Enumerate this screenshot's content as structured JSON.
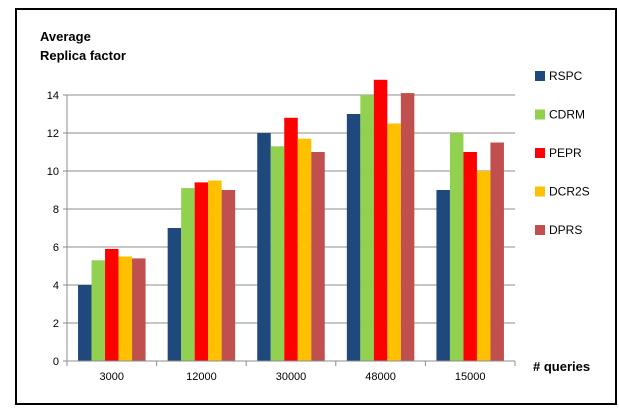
{
  "chart_data": {
    "type": "bar",
    "ylabel_lines": [
      "Average",
      "Replica factor"
    ],
    "xlabel": "# queries",
    "categories": [
      "3000",
      "12000",
      "30000",
      "48000",
      "15000"
    ],
    "ylim": [
      0,
      14
    ],
    "yticks": [
      0,
      2,
      4,
      6,
      8,
      10,
      12,
      14
    ],
    "grid": true,
    "legend_position": "right",
    "series": [
      {
        "name": "RSPC",
        "color": "#1F497D",
        "values": [
          4.0,
          7.0,
          12.0,
          13.0,
          9.0
        ]
      },
      {
        "name": "CDRM",
        "color": "#92D050",
        "values": [
          5.3,
          9.1,
          11.3,
          14.0,
          12.0
        ]
      },
      {
        "name": "PEPR",
        "color": "#FF0000",
        "values": [
          5.9,
          9.4,
          12.8,
          14.8,
          11.0
        ]
      },
      {
        "name": "DCR2S",
        "color": "#FFC000",
        "values": [
          5.5,
          9.5,
          11.7,
          12.5,
          10.0
        ]
      },
      {
        "name": "DPRS",
        "color": "#C0504D",
        "values": [
          5.4,
          9.0,
          11.0,
          14.1,
          11.5
        ]
      }
    ]
  }
}
